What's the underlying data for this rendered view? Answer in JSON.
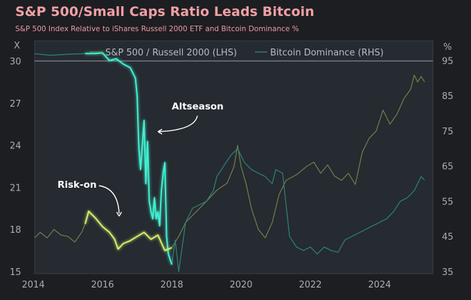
{
  "title": "S&P 500/Small Caps Ratio Leads Bitcoin",
  "subtitle": "S&P 500 Index Relative to iShares Russell 2000 ETF and Bitcoin Dominance %",
  "colors": {
    "background": "#1c1e22",
    "plot_background": "#262a31",
    "ratio_faded": "#6b7d48",
    "ratio_highlight": "#d4f06a",
    "dominance_faded": "#2c7f74",
    "dominance_highlight": "#3ff0d0",
    "title": "#f0a0a4"
  },
  "chart_data": {
    "type": "line",
    "left_axis": {
      "unit": "X",
      "ticks": [
        15,
        18,
        21,
        24,
        27,
        30
      ],
      "range": [
        15,
        30
      ]
    },
    "right_axis": {
      "unit": "%",
      "ticks": [
        35,
        45,
        55,
        65,
        75,
        85,
        95
      ],
      "range": [
        35,
        100.6
      ]
    },
    "x_axis": {
      "ticks": [
        "2014",
        "2016",
        "2018",
        "2020",
        "2022",
        "2024"
      ],
      "range": [
        2014,
        2025.5
      ]
    },
    "highlight_range": [
      2015.5,
      2018.0
    ],
    "legend": {
      "ratio": "S&P 500 / Russell 2000 (LHS)",
      "dominance": "Bitcoin Dominance (RHS)"
    },
    "annotations": {
      "altseason": "Altseason",
      "risk_on": "Risk-on"
    },
    "series": [
      {
        "name": "S&P 500 / Russell 2000 (LHS)",
        "axis": "left",
        "x": [
          2014.0,
          2014.2,
          2014.4,
          2014.6,
          2014.8,
          2015.0,
          2015.2,
          2015.4,
          2015.5,
          2015.6,
          2015.8,
          2016.0,
          2016.2,
          2016.35,
          2016.45,
          2016.6,
          2016.8,
          2017.0,
          2017.2,
          2017.4,
          2017.6,
          2017.8,
          2018.0,
          2018.2,
          2018.4,
          2018.6,
          2018.8,
          2019.0,
          2019.3,
          2019.6,
          2019.8,
          2019.9,
          2020.0,
          2020.15,
          2020.3,
          2020.5,
          2020.7,
          2020.9,
          2021.1,
          2021.3,
          2021.6,
          2021.9,
          2022.1,
          2022.3,
          2022.5,
          2022.7,
          2022.9,
          2023.1,
          2023.3,
          2023.5,
          2023.7,
          2023.9,
          2024.1,
          2024.3,
          2024.5,
          2024.7,
          2024.9,
          2025.0,
          2025.1,
          2025.2,
          2025.3
        ],
        "values": [
          17.3,
          17.8,
          17.4,
          18.0,
          17.6,
          17.5,
          17.1,
          17.8,
          18.4,
          19.3,
          18.8,
          18.2,
          17.8,
          17.3,
          16.6,
          17.0,
          17.2,
          17.5,
          17.8,
          17.3,
          17.6,
          16.5,
          16.7,
          17.5,
          18.5,
          19.0,
          19.5,
          20.0,
          20.8,
          21.3,
          22.5,
          24.0,
          22.5,
          21.2,
          19.5,
          18.0,
          17.4,
          18.5,
          20.5,
          21.5,
          21.9,
          22.5,
          22.8,
          22.0,
          22.6,
          21.8,
          21.5,
          22.0,
          21.2,
          23.5,
          24.5,
          25.0,
          26.5,
          25.5,
          26.2,
          27.3,
          28.0,
          29.0,
          28.5,
          28.9,
          28.5
        ]
      },
      {
        "name": "Bitcoin Dominance (RHS)",
        "axis": "right",
        "x": [
          2014.0,
          2014.5,
          2015.0,
          2015.5,
          2015.8,
          2016.0,
          2016.2,
          2016.4,
          2016.6,
          2016.8,
          2016.95,
          2017.0,
          2017.05,
          2017.1,
          2017.2,
          2017.25,
          2017.3,
          2017.35,
          2017.4,
          2017.45,
          2017.5,
          2017.55,
          2017.6,
          2017.65,
          2017.7,
          2017.75,
          2017.8,
          2017.85,
          2017.9,
          2018.0,
          2018.1,
          2018.2,
          2018.4,
          2018.6,
          2018.8,
          2019.0,
          2019.2,
          2019.3,
          2019.5,
          2019.7,
          2019.9,
          2020.1,
          2020.3,
          2020.5,
          2020.7,
          2020.9,
          2021.0,
          2021.2,
          2021.4,
          2021.6,
          2021.8,
          2022.0,
          2022.2,
          2022.4,
          2022.6,
          2022.8,
          2023.0,
          2023.2,
          2023.4,
          2023.6,
          2023.8,
          2024.0,
          2024.2,
          2024.4,
          2024.6,
          2024.8,
          2025.0,
          2025.1,
          2025.2,
          2025.3
        ],
        "values": [
          97.0,
          96.5,
          96.8,
          97.0,
          97.0,
          97.2,
          95.0,
          95.5,
          94.0,
          93.0,
          90.0,
          85.0,
          70.0,
          64.0,
          78.0,
          60.0,
          72.0,
          55.0,
          52.0,
          50.0,
          56.0,
          50.0,
          52.0,
          48.0,
          58.0,
          63.0,
          66.0,
          45.0,
          40.0,
          37.0,
          44.0,
          35.0,
          49.0,
          53.0,
          54.0,
          55.0,
          58.0,
          62.0,
          65.0,
          68.0,
          70.0,
          66.0,
          64.0,
          63.0,
          62.0,
          60.0,
          64.0,
          63.0,
          45.0,
          42.0,
          41.0,
          42.0,
          40.0,
          42.0,
          41.0,
          40.5,
          44.0,
          45.0,
          46.0,
          47.0,
          48.0,
          49.0,
          50.0,
          52.0,
          55.0,
          56.0,
          58.0,
          60.0,
          62.0,
          61.0
        ]
      }
    ]
  }
}
